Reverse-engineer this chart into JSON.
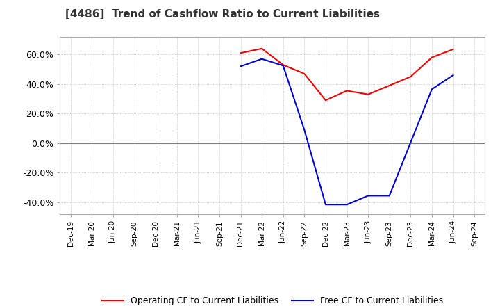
{
  "title": "[4486]  Trend of Cashflow Ratio to Current Liabilities",
  "title_fontsize": 11,
  "title_color": "#333333",
  "background_color": "#ffffff",
  "plot_bg_color": "#ffffff",
  "grid_color": "#aaaaaa",
  "zero_line_color": "#808080",
  "operating_cf_color": "#ee0000",
  "free_cf_color": "#0000cc",
  "operating_cf_label": "Operating CF to Current Liabilities",
  "free_cf_label": "Free CF to Current Liabilities",
  "ylim": [
    -0.48,
    0.72
  ],
  "yticks": [
    -0.4,
    -0.2,
    0.0,
    0.2,
    0.4,
    0.6
  ],
  "operating_cf_data": [
    [
      "Dec-19",
      null
    ],
    [
      "Mar-20",
      null
    ],
    [
      "Jun-20",
      null
    ],
    [
      "Sep-20",
      null
    ],
    [
      "Dec-20",
      null
    ],
    [
      "Mar-21",
      null
    ],
    [
      "Jun-21",
      null
    ],
    [
      "Sep-21",
      null
    ],
    [
      "Dec-21",
      0.61
    ],
    [
      "Mar-22",
      0.64
    ],
    [
      "Jun-22",
      0.53
    ],
    [
      "Sep-22",
      0.47
    ],
    [
      "Dec-22",
      0.29
    ],
    [
      "Mar-23",
      0.355
    ],
    [
      "Jun-23",
      0.33
    ],
    [
      "Sep-23",
      null
    ],
    [
      "Dec-23",
      0.45
    ],
    [
      "Mar-24",
      0.58
    ],
    [
      "Jun-24",
      0.635
    ],
    [
      "Sep-24",
      null
    ]
  ],
  "free_cf_data": [
    [
      "Dec-19",
      null
    ],
    [
      "Mar-20",
      null
    ],
    [
      "Jun-20",
      null
    ],
    [
      "Sep-20",
      null
    ],
    [
      "Dec-20",
      null
    ],
    [
      "Mar-21",
      null
    ],
    [
      "Jun-21",
      null
    ],
    [
      "Sep-21",
      null
    ],
    [
      "Dec-21",
      0.52
    ],
    [
      "Mar-22",
      0.57
    ],
    [
      "Jun-22",
      0.525
    ],
    [
      "Sep-22",
      0.09
    ],
    [
      "Dec-22",
      -0.415
    ],
    [
      "Mar-23",
      -0.415
    ],
    [
      "Jun-23",
      -0.355
    ],
    [
      "Sep-23",
      -0.355
    ],
    [
      "Dec-23",
      0.005
    ],
    [
      "Mar-24",
      0.365
    ],
    [
      "Jun-24",
      0.46
    ],
    [
      "Sep-24",
      null
    ]
  ],
  "xtick_labels": [
    "Dec-19",
    "Mar-20",
    "Jun-20",
    "Sep-20",
    "Dec-20",
    "Mar-21",
    "Jun-21",
    "Sep-21",
    "Dec-21",
    "Mar-22",
    "Jun-22",
    "Sep-22",
    "Dec-22",
    "Mar-23",
    "Jun-23",
    "Sep-23",
    "Dec-23",
    "Mar-24",
    "Jun-24",
    "Sep-24"
  ],
  "line_width": 1.5,
  "spine_color": "#aaaaaa"
}
